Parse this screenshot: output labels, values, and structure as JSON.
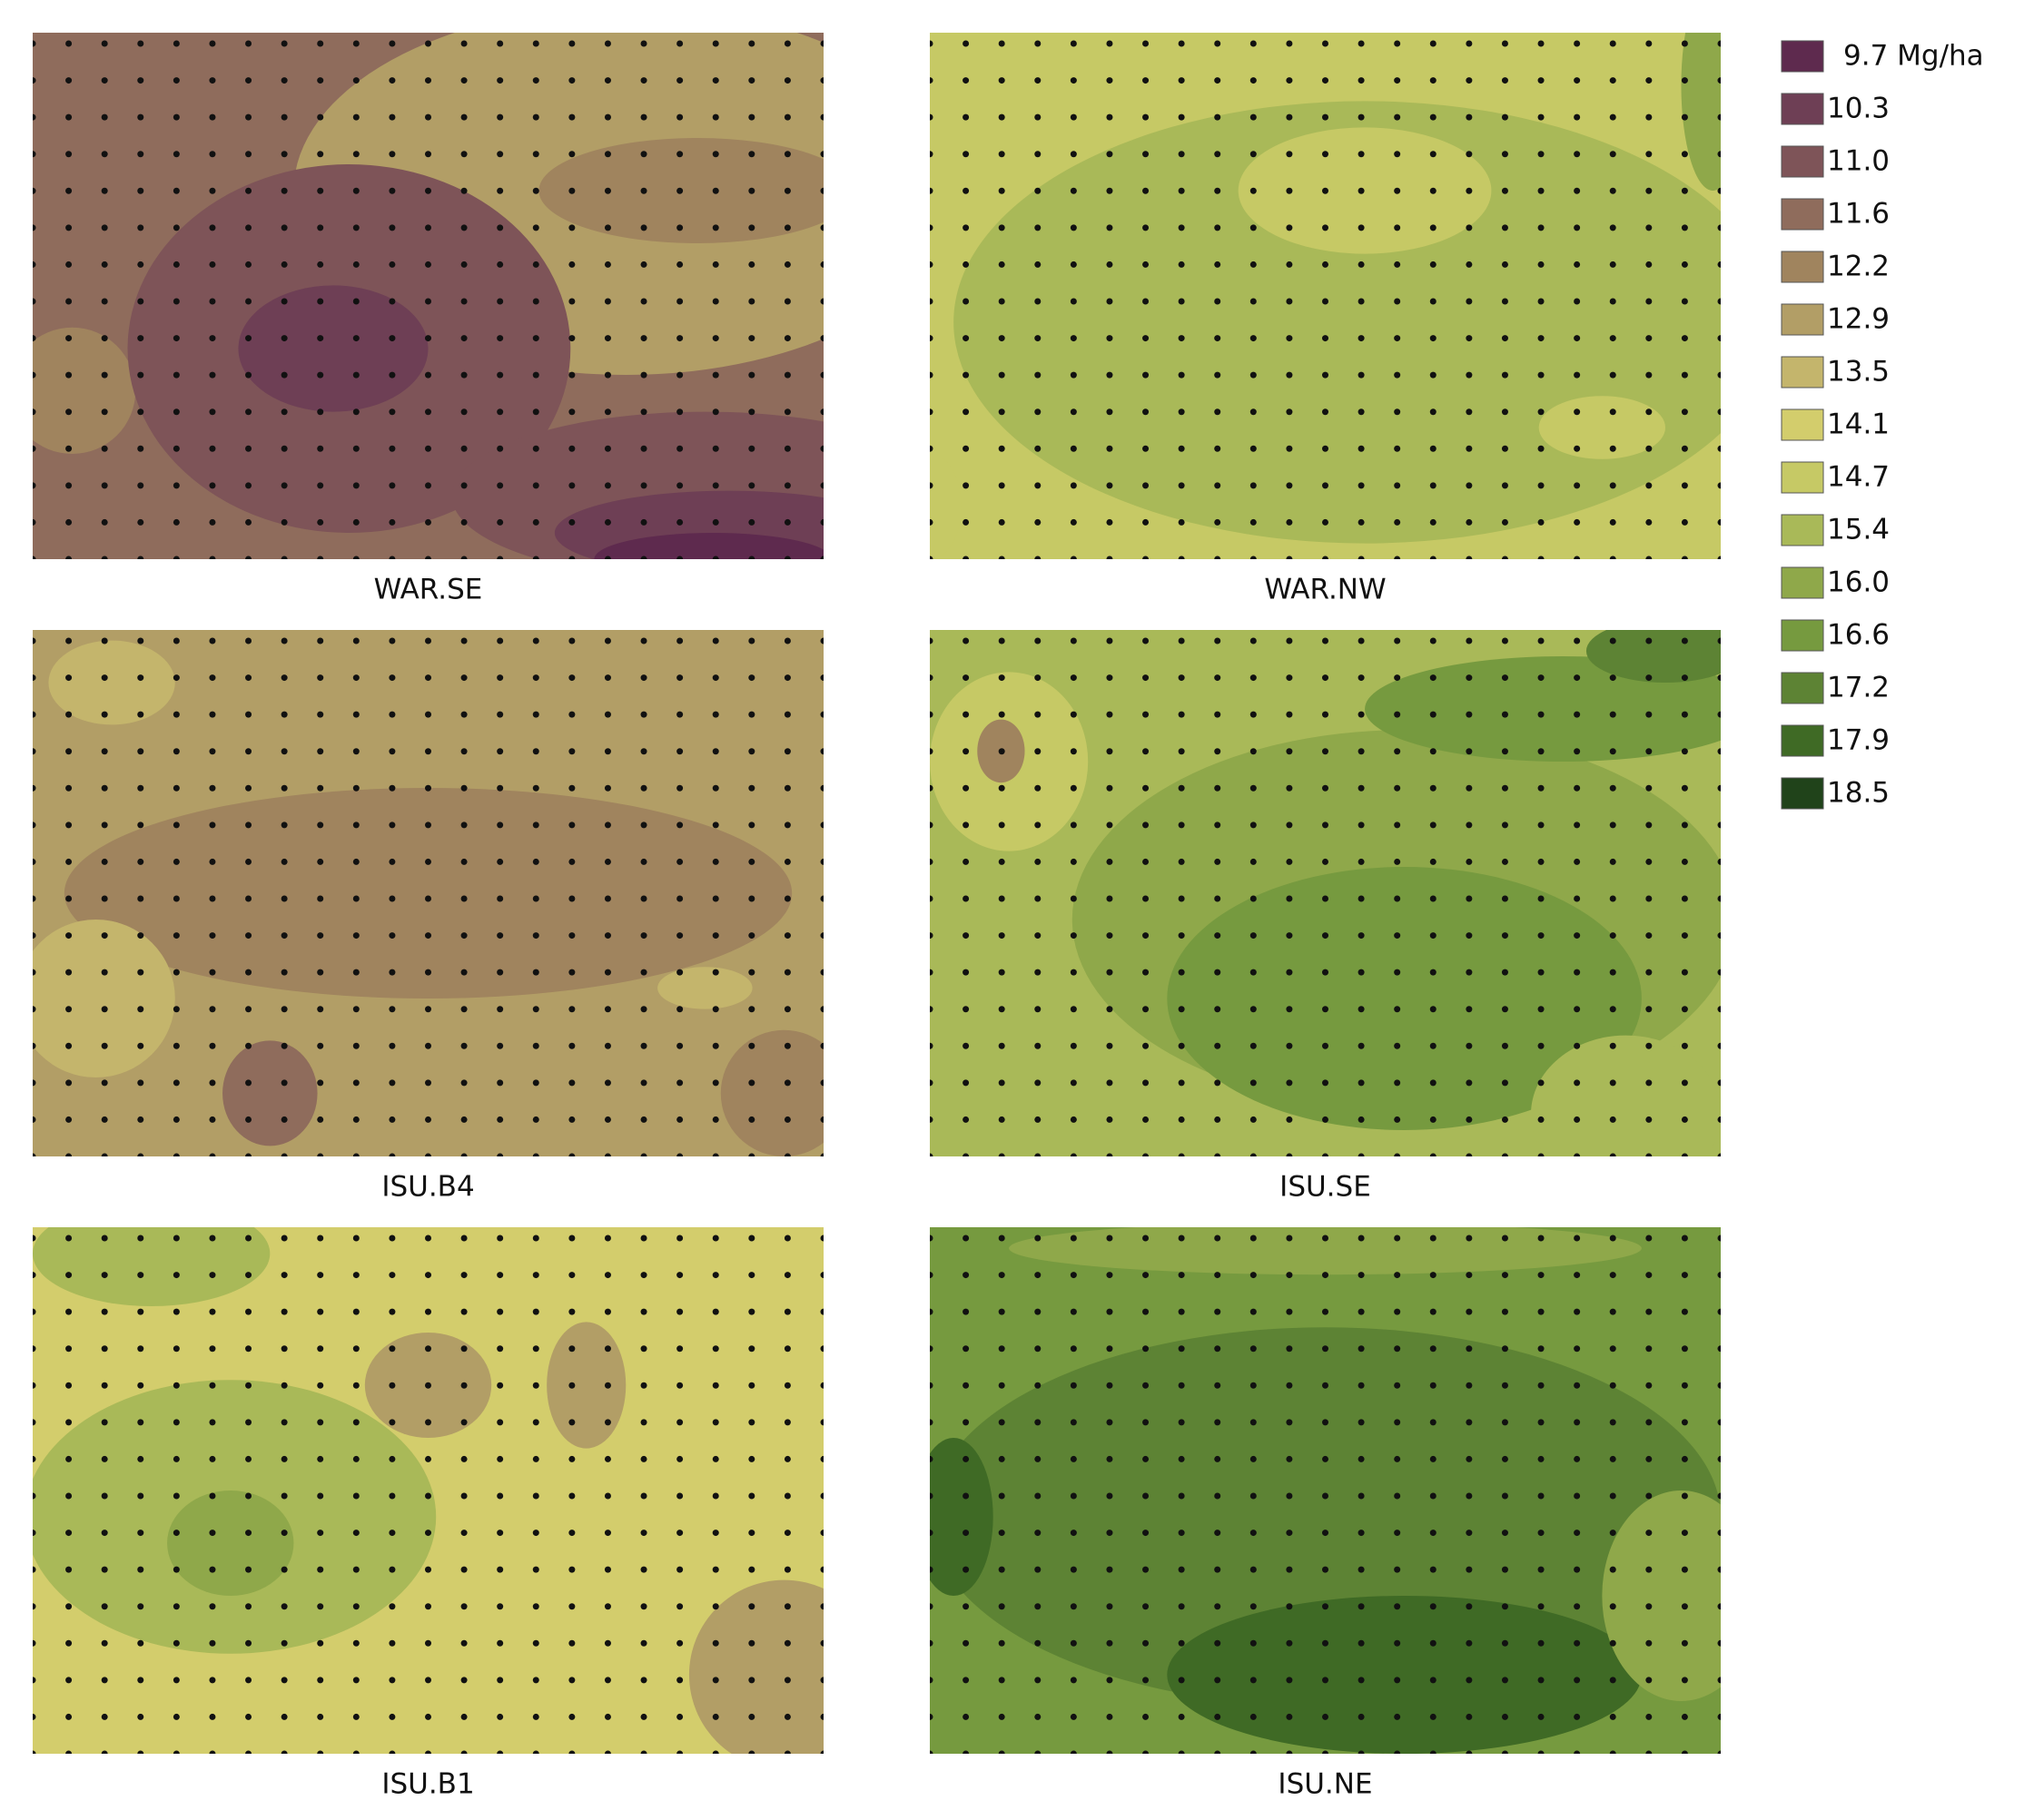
{
  "panels": [
    {
      "label": "WAR.SE"
    },
    {
      "label": "WAR.NW"
    },
    {
      "label": "ISU.B4"
    },
    {
      "label": "ISU.SE"
    },
    {
      "label": "ISU.B1"
    },
    {
      "label": "ISU.NE"
    }
  ],
  "legend": {
    "items": [
      {
        "label": "9.7 Mg/ha",
        "color": "#5e2a4e"
      },
      {
        "label": "10.3",
        "color": "#6e3f55"
      },
      {
        "label": "11.0",
        "color": "#7e5458"
      },
      {
        "label": "11.6",
        "color": "#8f6c5c"
      },
      {
        "label": "12.2",
        "color": "#a0845e"
      },
      {
        "label": "12.9",
        "color": "#b29e66"
      },
      {
        "label": "13.5",
        "color": "#c4b56c"
      },
      {
        "label": "14.1",
        "color": "#d3cd6c"
      },
      {
        "label": "14.7",
        "color": "#c6c965"
      },
      {
        "label": "15.4",
        "color": "#a9b958"
      },
      {
        "label": "16.0",
        "color": "#8fa84a"
      },
      {
        "label": "16.6",
        "color": "#769a3f"
      },
      {
        "label": "17.2",
        "color": "#5d8334"
      },
      {
        "label": "17.9",
        "color": "#3f6a25"
      },
      {
        "label": "18.5",
        "color": "#20431a"
      }
    ]
  }
}
